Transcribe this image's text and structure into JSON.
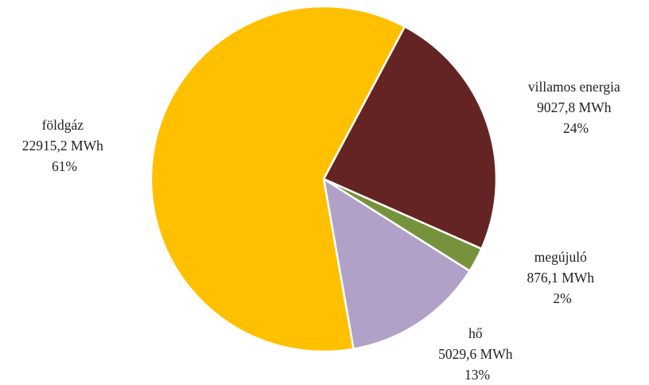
{
  "chart_data": {
    "type": "pie",
    "title": "",
    "unit": "MWh",
    "slices": [
      {
        "name": "villamos energia",
        "value": 9027.8,
        "value_label": "9027,8 MWh",
        "percent_label": "24%",
        "color": "#632423"
      },
      {
        "name": "megújuló",
        "value": 876.1,
        "value_label": "876,1 MWh",
        "percent_label": "2%",
        "color": "#76923c"
      },
      {
        "name": "hő",
        "value": 5029.6,
        "value_label": "5029,6 MWh",
        "percent_label": "13%",
        "color": "#b1a0c7"
      },
      {
        "name": "földgáz",
        "value": 22915.2,
        "value_label": "22915,2 MWh",
        "percent_label": "61%",
        "color": "#ffc000"
      }
    ],
    "legend": "none",
    "data_labels": "outside"
  }
}
